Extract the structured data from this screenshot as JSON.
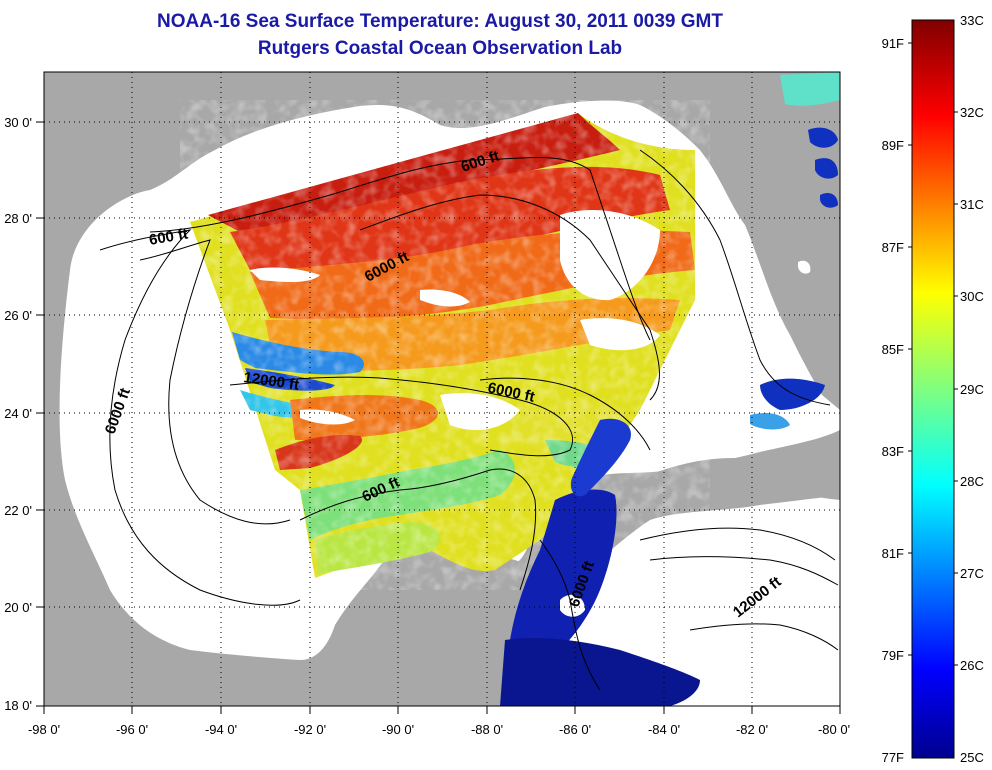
{
  "title": {
    "line1": "NOAA-16 Sea Surface Temperature:  August 30, 2011 0039 GMT",
    "line2": "Rutgers Coastal Ocean Observation Lab"
  },
  "axes": {
    "lon_labels": [
      "-98 0'",
      "-96 0'",
      "-94 0'",
      "-92 0'",
      "-90 0'",
      "-88 0'",
      "-86 0'",
      "-84 0'",
      "-82 0'",
      "-80 0'"
    ],
    "lat_labels": [
      "30 0'",
      "28 0'",
      "26 0'",
      "24 0'",
      "22 0'",
      "20 0'",
      "18 0'"
    ],
    "lon_range": [
      -98,
      -80
    ],
    "lat_range": [
      18,
      31
    ],
    "grid": "dotted"
  },
  "contour_labels": [
    {
      "text": "600 ft",
      "name": "label-600ft-north"
    },
    {
      "text": "600 ft",
      "name": "label-600ft-west"
    },
    {
      "text": "6000 ft",
      "name": "label-6000ft-north"
    },
    {
      "text": "6000 ft",
      "name": "label-6000ft-west"
    },
    {
      "text": "12000 ft",
      "name": "label-12000ft-gulf"
    },
    {
      "text": "6000 ft",
      "name": "label-6000ft-east"
    },
    {
      "text": "600 ft",
      "name": "label-600ft-south"
    },
    {
      "text": "6000 ft",
      "name": "label-6000ft-yucatan"
    },
    {
      "text": "12000 ft",
      "name": "label-12000ft-caribbean"
    }
  ],
  "colorbar": {
    "celsius": [
      "33C",
      "32C",
      "31C",
      "30C",
      "29C",
      "28C",
      "27C",
      "26C",
      "25C"
    ],
    "fahrenheit": [
      "91F",
      "89F",
      "87F",
      "85F",
      "83F",
      "81F",
      "79F",
      "77F"
    ],
    "range_c": [
      25,
      33
    ]
  },
  "colors": {
    "land": "#a8a8a8",
    "no_data": "#ffffff",
    "title": "#1a1aa6"
  }
}
